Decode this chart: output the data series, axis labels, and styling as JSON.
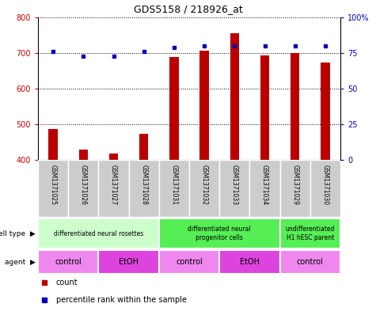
{
  "title": "GDS5158 / 218926_at",
  "samples": [
    "GSM1371025",
    "GSM1371026",
    "GSM1371027",
    "GSM1371028",
    "GSM1371031",
    "GSM1371032",
    "GSM1371033",
    "GSM1371034",
    "GSM1371029",
    "GSM1371030"
  ],
  "counts": [
    487,
    428,
    418,
    473,
    688,
    706,
    755,
    693,
    700,
    673
  ],
  "percentiles": [
    76,
    73,
    73,
    76,
    79,
    80,
    80,
    80,
    80,
    80
  ],
  "ylim_left": [
    400,
    800
  ],
  "ylim_right": [
    0,
    100
  ],
  "yticks_left": [
    400,
    500,
    600,
    700,
    800
  ],
  "yticks_right": [
    0,
    25,
    50,
    75,
    100
  ],
  "bar_color": "#bb0000",
  "dot_color": "#0000bb",
  "cell_type_groups": [
    {
      "label": "differentiated neural rosettes",
      "start": 0,
      "end": 4,
      "color": "#ccffcc"
    },
    {
      "label": "differentiated neural\nprogenitor cells",
      "start": 4,
      "end": 8,
      "color": "#55ee55"
    },
    {
      "label": "undifferentiated\nH1 hESC parent",
      "start": 8,
      "end": 10,
      "color": "#55ee55"
    }
  ],
  "agent_groups": [
    {
      "label": "control",
      "start": 0,
      "end": 2,
      "color": "#ee88ee"
    },
    {
      "label": "EtOH",
      "start": 2,
      "end": 4,
      "color": "#dd44dd"
    },
    {
      "label": "control",
      "start": 4,
      "end": 6,
      "color": "#ee88ee"
    },
    {
      "label": "EtOH",
      "start": 6,
      "end": 8,
      "color": "#dd44dd"
    },
    {
      "label": "control",
      "start": 8,
      "end": 10,
      "color": "#ee88ee"
    }
  ],
  "left_label_color": "#cc0000",
  "right_label_color": "#0000cc",
  "tick_bg_color": "#cccccc",
  "legend_items": [
    {
      "label": "count",
      "color": "#bb0000"
    },
    {
      "label": "percentile rank within the sample",
      "color": "#0000bb"
    }
  ]
}
